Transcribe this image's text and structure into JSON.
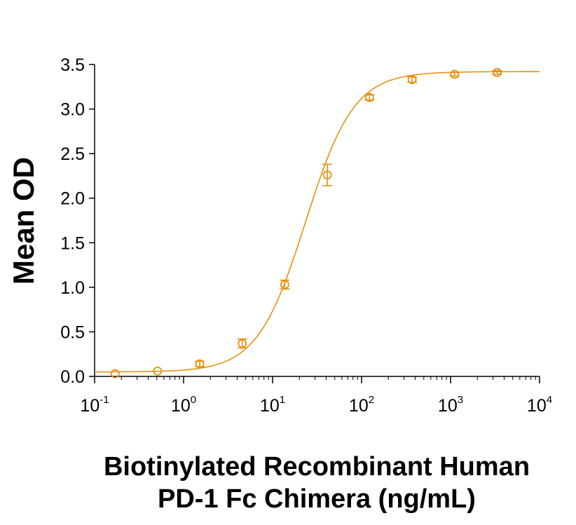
{
  "chart_data": {
    "type": "scatter",
    "xlabel": [
      "Biotinylated Recombinant Human",
      "PD-1 Fc Chimera (ng/mL)"
    ],
    "ylabel": "Mean OD",
    "x_scale": "log",
    "xlim": [
      0.1,
      10000
    ],
    "ylim": [
      0,
      3.5
    ],
    "x_ticks": [
      {
        "value": 0.1,
        "base": "10",
        "exp": "-1"
      },
      {
        "value": 1,
        "base": "10",
        "exp": "0"
      },
      {
        "value": 10,
        "base": "10",
        "exp": "1"
      },
      {
        "value": 100,
        "base": "10",
        "exp": "2"
      },
      {
        "value": 1000,
        "base": "10",
        "exp": "3"
      },
      {
        "value": 10000,
        "base": "10",
        "exp": "4"
      }
    ],
    "y_ticks": [
      "0.0",
      "0.5",
      "1.0",
      "1.5",
      "2.0",
      "2.5",
      "3.0",
      "3.5"
    ],
    "grid": false,
    "legend": "none",
    "color": "#e8900f",
    "series": [
      {
        "x": [
          0.17,
          0.51,
          1.52,
          4.57,
          13.7,
          41.2,
          123,
          370,
          1111,
          3333
        ],
        "y": [
          0.03,
          0.06,
          0.14,
          0.37,
          1.03,
          2.26,
          3.13,
          3.33,
          3.39,
          3.41
        ],
        "error": [
          0.0,
          0.0,
          0.03,
          0.05,
          0.05,
          0.12,
          0.03,
          0.03,
          0.02,
          0.02
        ]
      }
    ],
    "fit": {
      "bottom": 0.05,
      "top": 3.42,
      "ec50": 23.5,
      "hill": 1.6
    }
  }
}
